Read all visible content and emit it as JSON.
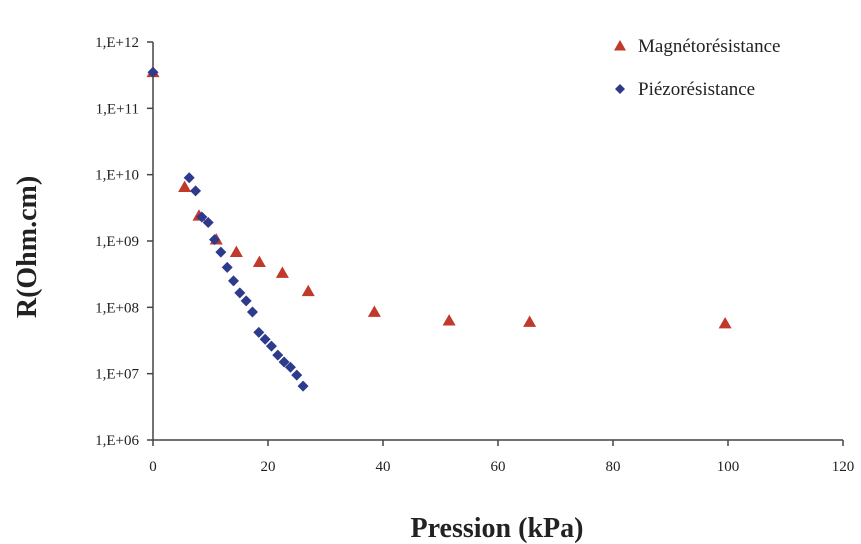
{
  "chart_data": {
    "type": "scatter",
    "title": "",
    "xlabel": "Pression (kPa)",
    "ylabel": "R(Ohm.cm)",
    "xlim": [
      0,
      120
    ],
    "ylim": [
      1000000,
      1000000000000
    ],
    "yscale": "log",
    "grid": false,
    "legend_position": "top-right",
    "x_ticks": [
      0,
      20,
      40,
      60,
      80,
      100,
      120
    ],
    "x_tick_labels": [
      "0",
      "20",
      "40",
      "60",
      "80",
      "100",
      "120"
    ],
    "y_ticks": [
      1000000,
      10000000,
      100000000,
      1000000000,
      10000000000,
      100000000000,
      1000000000000
    ],
    "y_tick_labels": [
      "1,E+06",
      "1,E+07",
      "1,E+08",
      "1,E+09",
      "1,E+10",
      "1,E+11",
      "1,E+12"
    ],
    "series": [
      {
        "name": "Magnétorésistance",
        "marker": "triangle",
        "color": "#c0392b",
        "points": [
          [
            0,
            350000000000
          ],
          [
            5.5,
            6500000000
          ],
          [
            8,
            2400000000
          ],
          [
            11,
            1050000000
          ],
          [
            14.5,
            680000000
          ],
          [
            18.5,
            480000000
          ],
          [
            22.5,
            330000000
          ],
          [
            27,
            175000000
          ],
          [
            38.5,
            85000000
          ],
          [
            51.5,
            63000000
          ],
          [
            65.5,
            60000000
          ],
          [
            99.5,
            57000000
          ]
        ]
      },
      {
        "name": "Piézorésistance",
        "marker": "diamond",
        "color": "#2e3a8c",
        "points": [
          [
            0,
            350000000000
          ],
          [
            6.3,
            9000000000
          ],
          [
            7.4,
            5700000000
          ],
          [
            8.5,
            2300000000
          ],
          [
            9.6,
            1900000000
          ],
          [
            10.7,
            1050000000
          ],
          [
            11.8,
            680000000
          ],
          [
            12.9,
            400000000
          ],
          [
            14,
            250000000
          ],
          [
            15.1,
            165000000
          ],
          [
            16.2,
            125000000
          ],
          [
            17.3,
            85000000
          ],
          [
            18.4,
            42000000
          ],
          [
            19.5,
            33000000
          ],
          [
            20.6,
            26000000
          ],
          [
            21.7,
            19000000
          ],
          [
            22.8,
            15000000
          ],
          [
            23.9,
            12500000
          ],
          [
            25,
            9500000
          ],
          [
            26.1,
            6500000
          ]
        ]
      }
    ]
  }
}
